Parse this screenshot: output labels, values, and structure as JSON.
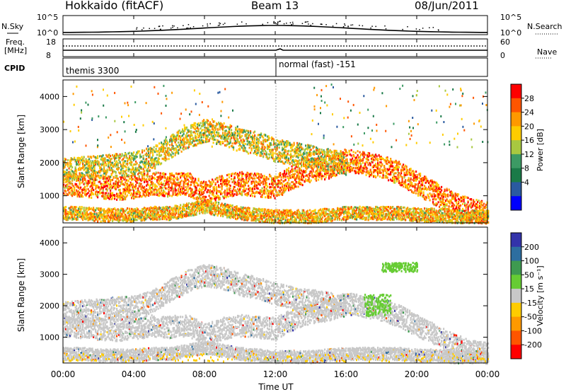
{
  "header": {
    "station": "Hokkaido (fitACF)",
    "beam": "Beam 13",
    "date": "08/Jun/2011"
  },
  "noise_panel": {
    "left_label": "N.Sky",
    "right_label": "N.Search",
    "yticks": [
      "10^5",
      "10^0"
    ]
  },
  "freq_panel": {
    "left_label_1": "Freq.",
    "left_label_2": "[MHz]",
    "left_ticks": [
      "18",
      "8"
    ],
    "right_ticks": [
      "60",
      "0"
    ],
    "right_label": "Nave"
  },
  "cpid_panel": {
    "label": "CPID",
    "programs": [
      "themis 3300",
      "normal (fast) -151"
    ]
  },
  "power_panel": {
    "ylabel": "Slant Range [km]",
    "colorbar_label": "Power [dB]",
    "colorbar_ticks": [
      "28",
      "24",
      "20",
      "16",
      "12",
      "8",
      "4"
    ],
    "colorbar_colors": [
      "#ff0000",
      "#ff5500",
      "#ff9900",
      "#ffcc00",
      "#a8c840",
      "#3c9a64",
      "#1a7a48",
      "#2a5aa0",
      "#0000ff"
    ]
  },
  "velocity_panel": {
    "ylabel": "Slant Range [km]",
    "colorbar_label": "Velocity [m s⁻¹]",
    "colorbar_ticks": [
      "200",
      "100",
      "50",
      "15",
      "-15",
      "-50",
      "-100",
      "-200"
    ],
    "colorbar_colors": [
      "#3333aa",
      "#2d6ea0",
      "#3e9a50",
      "#66cc33",
      "#c8c8c8",
      "#ffcc00",
      "#ff9900",
      "#ff5500",
      "#ff0000"
    ]
  },
  "xaxis": {
    "label": "Time UT",
    "ticks": [
      "00:00",
      "04:00",
      "08:00",
      "12:00",
      "16:00",
      "20:00",
      "00:00"
    ]
  },
  "chart_data": [
    {
      "type": "heatmap",
      "title": "Power [dB]",
      "xlabel": "Time UT",
      "ylabel": "Slant Range [km]",
      "xlim": [
        0,
        24
      ],
      "ylim": [
        180,
        4500
      ],
      "yticks": [
        1000,
        2000,
        3000,
        4000
      ],
      "clim": [
        0,
        30
      ],
      "scatter_bands": [
        {
          "times": [
            0,
            1,
            2,
            3,
            4,
            5,
            6,
            7,
            8,
            9,
            10,
            11,
            12,
            13,
            14,
            15,
            16,
            17,
            18,
            19,
            20,
            21,
            22,
            23,
            24
          ],
          "range_km": [
            1400,
            1350,
            1300,
            1250,
            1300,
            1400,
            1350,
            1400,
            1100,
            1300,
            1400,
            1350,
            1300,
            1600,
            1800,
            1900,
            2100,
            2000,
            1900,
            1700,
            1400,
            1100,
            800,
            600,
            500
          ],
          "power_db": 24
        },
        {
          "times": [
            0,
            1,
            2,
            3,
            4,
            5,
            6,
            7,
            8,
            9,
            10,
            11,
            12,
            13,
            14,
            15,
            16
          ],
          "range_km": [
            1800,
            1850,
            1900,
            1950,
            2000,
            2150,
            2500,
            2800,
            3000,
            2900,
            2700,
            2600,
            2400,
            2300,
            2200,
            2100,
            2000
          ],
          "power_db": 18
        },
        {
          "times": [
            0,
            1,
            2,
            3,
            4,
            5,
            6,
            7,
            8,
            9,
            10,
            11,
            12,
            13,
            14,
            15,
            16,
            17,
            18,
            19,
            20,
            21,
            22,
            23,
            24
          ],
          "range_km": [
            500,
            500,
            450,
            450,
            450,
            500,
            500,
            600,
            700,
            600,
            500,
            450,
            400,
            400,
            400,
            450,
            500,
            500,
            500,
            500,
            450,
            450,
            400,
            400,
            400
          ],
          "power_db": 20
        }
      ]
    },
    {
      "type": "heatmap",
      "title": "Velocity [m s⁻¹]",
      "xlabel": "Time UT",
      "ylabel": "Slant Range [km]",
      "xlim": [
        0,
        24
      ],
      "ylim": [
        180,
        4500
      ],
      "yticks": [
        1000,
        2000,
        3000,
        4000
      ],
      "clim": [
        -200,
        200
      ],
      "dominant_value": "ground scatter (grey, -15 to 15 m/s)",
      "notable_features": [
        {
          "time_range": [
            17,
            18.5
          ],
          "range_km": [
            1700,
            2400
          ],
          "velocity": 50
        },
        {
          "time_range": [
            18,
            20
          ],
          "range_km": [
            3100,
            3400
          ],
          "velocity": 50
        }
      ]
    }
  ]
}
